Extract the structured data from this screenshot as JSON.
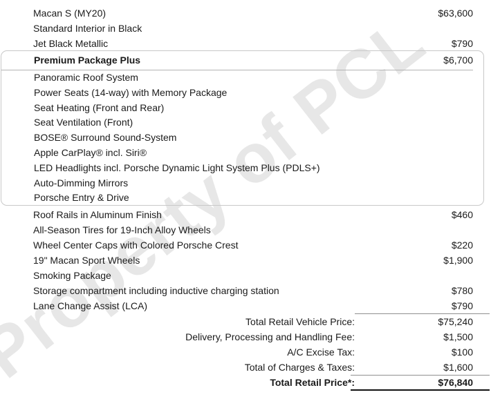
{
  "watermark": {
    "text": "Property of PCL",
    "color": "#e7e7e7"
  },
  "colors": {
    "text": "#1a1a1a",
    "box_border": "#c8c8c8",
    "rule_light": "#8f8f8f",
    "rule_heavy": "#111111"
  },
  "line_items_top": [
    {
      "label": "Macan S (MY20)",
      "price": "$63,600"
    },
    {
      "label": "Standard Interior in Black",
      "price": ""
    },
    {
      "label": "Jet Black Metallic",
      "price": "$790"
    }
  ],
  "package": {
    "header": {
      "label": "Premium Package Plus",
      "price": "$6,700"
    },
    "items": [
      "Panoramic Roof System",
      "Power Seats (14-way) with Memory Package",
      "Seat Heating (Front and Rear)",
      "Seat Ventilation (Front)",
      "BOSE® Surround Sound-System",
      "Apple CarPlay® incl. Siri®",
      "LED Headlights incl. Porsche Dynamic Light System Plus (PDLS+)",
      "Auto-Dimming Mirrors",
      "Porsche Entry & Drive"
    ]
  },
  "line_items_options": [
    {
      "label": "Roof Rails in Aluminum Finish",
      "price": "$460"
    },
    {
      "label": "All-Season Tires for 19-Inch Alloy Wheels",
      "price": ""
    },
    {
      "label": "Wheel Center Caps with Colored Porsche Crest",
      "price": "$220"
    },
    {
      "label": "19\" Macan Sport Wheels",
      "price": "$1,900"
    },
    {
      "label": "Smoking Package",
      "price": ""
    },
    {
      "label": "Storage compartment including inductive charging station",
      "price": "$780"
    },
    {
      "label": "Lane Change Assist (LCA)",
      "price": "$790"
    }
  ],
  "totals": [
    {
      "label": "Total Retail Vehicle Price:",
      "price": "$75,240",
      "bold": false
    },
    {
      "label": "Delivery, Processing and Handling Fee:",
      "price": "$1,500",
      "bold": false
    },
    {
      "label": "A/C Excise Tax:",
      "price": "$100",
      "bold": false
    },
    {
      "label": "Total of Charges & Taxes:",
      "price": "$1,600",
      "bold": false
    },
    {
      "label": "Total Retail Price*:",
      "price": "$76,840",
      "bold": true
    }
  ]
}
